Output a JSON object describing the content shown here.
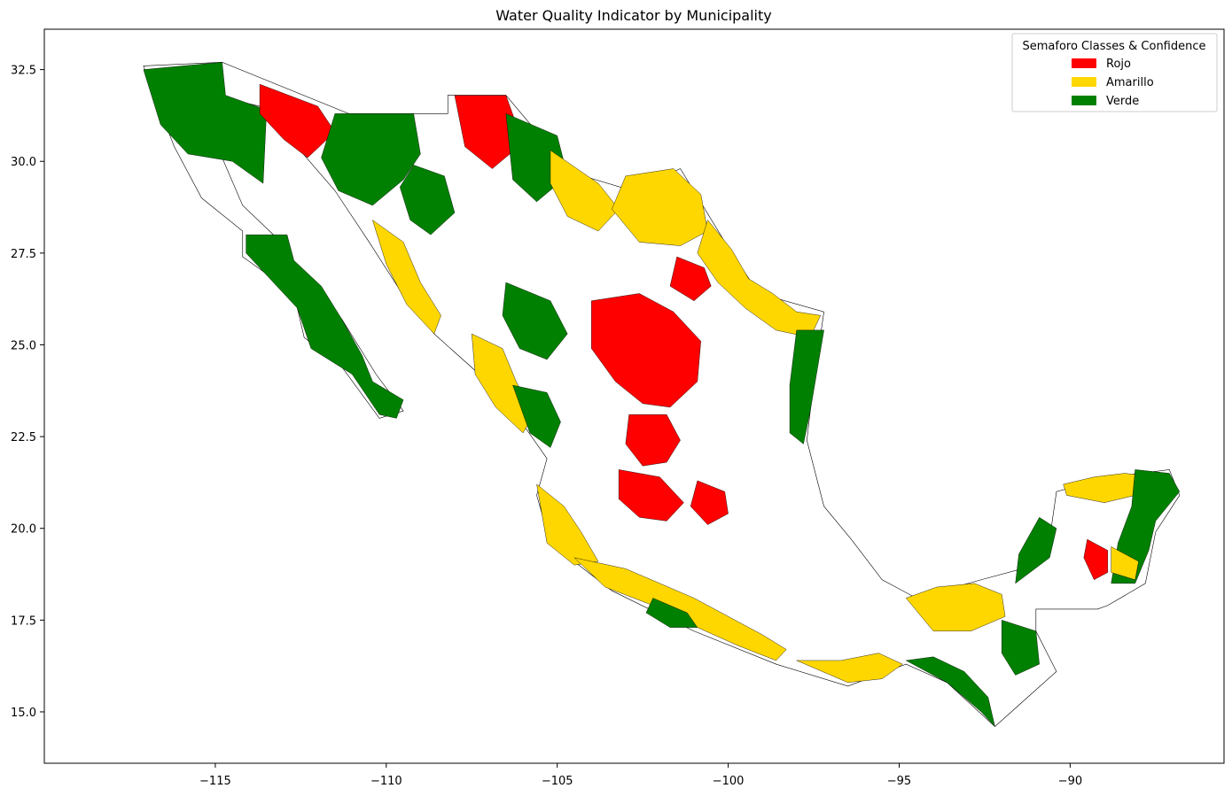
{
  "chart_data": {
    "type": "map",
    "title": "Water Quality Indicator by Municipality",
    "xlim": [
      -120,
      -85.5
    ],
    "ylim": [
      13.6,
      33.6
    ],
    "xticks": [
      -115,
      -110,
      -105,
      -100,
      -95,
      -90
    ],
    "yticks": [
      15.0,
      17.5,
      20.0,
      22.5,
      25.0,
      27.5,
      30.0,
      32.5
    ],
    "xtick_labels": [
      "−115",
      "−110",
      "−105",
      "−100",
      "−95",
      "−90"
    ],
    "ytick_labels": [
      "15.0",
      "17.5",
      "20.0",
      "22.5",
      "25.0",
      "27.5",
      "30.0",
      "32.5"
    ],
    "legend": {
      "title": "Semaforo Classes & Confidence",
      "placement": "top-right",
      "entries": [
        {
          "label": "Rojo",
          "color": "#ff0000"
        },
        {
          "label": "Amarillo",
          "color": "#ffd700"
        },
        {
          "label": "Verde",
          "color": "#008000"
        }
      ]
    },
    "no_data_color": "#ffffff",
    "border_color": "#000000",
    "regions": [
      {
        "class": "Verde",
        "poly": [
          [
            -117.1,
            32.5
          ],
          [
            -114.8,
            32.7
          ],
          [
            -114.7,
            31.8
          ],
          [
            -113.5,
            31.4
          ],
          [
            -113.6,
            29.4
          ],
          [
            -114.5,
            30.0
          ],
          [
            -115.8,
            30.2
          ],
          [
            -116.6,
            31.0
          ],
          [
            -117.1,
            32.5
          ]
        ]
      },
      {
        "class": "Verde",
        "poly": [
          [
            -114.1,
            28.0
          ],
          [
            -112.9,
            28.0
          ],
          [
            -112.7,
            27.3
          ],
          [
            -111.9,
            26.6
          ],
          [
            -111.3,
            25.7
          ],
          [
            -110.7,
            24.7
          ],
          [
            -110.4,
            24.0
          ],
          [
            -109.5,
            23.5
          ],
          [
            -109.7,
            23.0
          ],
          [
            -110.2,
            23.1
          ],
          [
            -111.0,
            24.2
          ],
          [
            -112.2,
            24.9
          ],
          [
            -112.6,
            26.0
          ],
          [
            -114.1,
            27.5
          ],
          [
            -114.1,
            28.0
          ]
        ]
      },
      {
        "class": "Rojo",
        "poly": [
          [
            -113.7,
            32.1
          ],
          [
            -112.0,
            31.5
          ],
          [
            -111.5,
            30.8
          ],
          [
            -112.3,
            30.1
          ],
          [
            -113.0,
            30.6
          ],
          [
            -113.7,
            31.3
          ],
          [
            -113.7,
            32.1
          ]
        ]
      },
      {
        "class": "Verde",
        "poly": [
          [
            -111.5,
            31.3
          ],
          [
            -109.2,
            31.3
          ],
          [
            -109.0,
            30.2
          ],
          [
            -109.5,
            29.5
          ],
          [
            -110.4,
            28.8
          ],
          [
            -111.4,
            29.2
          ],
          [
            -111.9,
            30.1
          ],
          [
            -111.5,
            31.3
          ]
        ]
      },
      {
        "class": "Verde",
        "poly": [
          [
            -109.2,
            29.9
          ],
          [
            -108.3,
            29.6
          ],
          [
            -108.0,
            28.6
          ],
          [
            -108.7,
            28.0
          ],
          [
            -109.3,
            28.4
          ],
          [
            -109.6,
            29.3
          ],
          [
            -109.2,
            29.9
          ]
        ]
      },
      {
        "class": "Amarillo",
        "poly": [
          [
            -110.4,
            28.4
          ],
          [
            -109.5,
            27.8
          ],
          [
            -109.0,
            26.7
          ],
          [
            -108.4,
            25.8
          ],
          [
            -108.6,
            25.3
          ],
          [
            -109.4,
            26.1
          ],
          [
            -110.0,
            27.2
          ],
          [
            -110.4,
            28.4
          ]
        ]
      },
      {
        "class": "Rojo",
        "poly": [
          [
            -108.0,
            31.8
          ],
          [
            -106.5,
            31.8
          ],
          [
            -106.0,
            30.5
          ],
          [
            -106.9,
            29.8
          ],
          [
            -107.7,
            30.4
          ],
          [
            -108.0,
            31.8
          ]
        ]
      },
      {
        "class": "Verde",
        "poly": [
          [
            -106.5,
            31.3
          ],
          [
            -105.0,
            30.7
          ],
          [
            -104.7,
            29.6
          ],
          [
            -105.6,
            28.9
          ],
          [
            -106.3,
            29.5
          ],
          [
            -106.5,
            31.3
          ]
        ]
      },
      {
        "class": "Amarillo",
        "poly": [
          [
            -105.2,
            30.3
          ],
          [
            -103.8,
            29.4
          ],
          [
            -103.2,
            28.7
          ],
          [
            -103.8,
            28.1
          ],
          [
            -104.7,
            28.5
          ],
          [
            -105.2,
            29.4
          ],
          [
            -105.2,
            30.3
          ]
        ]
      },
      {
        "class": "Amarillo",
        "poly": [
          [
            -103.0,
            29.6
          ],
          [
            -101.6,
            29.8
          ],
          [
            -100.8,
            29.1
          ],
          [
            -100.6,
            28.1
          ],
          [
            -101.4,
            27.7
          ],
          [
            -102.6,
            27.8
          ],
          [
            -103.4,
            28.7
          ],
          [
            -103.0,
            29.6
          ]
        ]
      },
      {
        "class": "Amarillo",
        "poly": [
          [
            -100.6,
            28.4
          ],
          [
            -99.9,
            27.6
          ],
          [
            -99.4,
            26.8
          ],
          [
            -98.7,
            26.4
          ],
          [
            -98.0,
            25.9
          ],
          [
            -97.3,
            25.8
          ],
          [
            -97.6,
            25.2
          ],
          [
            -98.6,
            25.4
          ],
          [
            -99.5,
            26.0
          ],
          [
            -100.3,
            26.7
          ],
          [
            -100.9,
            27.5
          ],
          [
            -100.6,
            28.4
          ]
        ]
      },
      {
        "class": "Rojo",
        "poly": [
          [
            -101.5,
            27.4
          ],
          [
            -100.7,
            27.1
          ],
          [
            -100.5,
            26.6
          ],
          [
            -101.0,
            26.2
          ],
          [
            -101.7,
            26.6
          ],
          [
            -101.5,
            27.4
          ]
        ]
      },
      {
        "class": "Verde",
        "poly": [
          [
            -98.0,
            25.4
          ],
          [
            -97.2,
            25.4
          ],
          [
            -97.4,
            24.3
          ],
          [
            -97.6,
            23.2
          ],
          [
            -97.8,
            22.3
          ],
          [
            -98.2,
            22.6
          ],
          [
            -98.2,
            23.9
          ],
          [
            -98.0,
            25.4
          ]
        ]
      },
      {
        "class": "Rojo",
        "poly": [
          [
            -104.0,
            26.2
          ],
          [
            -102.6,
            26.4
          ],
          [
            -101.6,
            25.9
          ],
          [
            -100.8,
            25.1
          ],
          [
            -100.9,
            24.0
          ],
          [
            -101.7,
            23.3
          ],
          [
            -102.5,
            23.4
          ],
          [
            -103.3,
            24.0
          ],
          [
            -104.0,
            24.9
          ],
          [
            -104.0,
            26.2
          ]
        ]
      },
      {
        "class": "Rojo",
        "poly": [
          [
            -102.9,
            23.1
          ],
          [
            -101.8,
            23.1
          ],
          [
            -101.4,
            22.4
          ],
          [
            -101.8,
            21.8
          ],
          [
            -102.5,
            21.7
          ],
          [
            -103.0,
            22.3
          ],
          [
            -102.9,
            23.1
          ]
        ]
      },
      {
        "class": "Verde",
        "poly": [
          [
            -106.5,
            26.7
          ],
          [
            -105.2,
            26.2
          ],
          [
            -104.7,
            25.3
          ],
          [
            -105.3,
            24.6
          ],
          [
            -106.1,
            24.9
          ],
          [
            -106.6,
            25.8
          ],
          [
            -106.5,
            26.7
          ]
        ]
      },
      {
        "class": "Amarillo",
        "poly": [
          [
            -107.5,
            25.3
          ],
          [
            -106.6,
            24.9
          ],
          [
            -106.2,
            24.0
          ],
          [
            -105.7,
            23.1
          ],
          [
            -106.0,
            22.6
          ],
          [
            -106.8,
            23.3
          ],
          [
            -107.4,
            24.2
          ],
          [
            -107.5,
            25.3
          ]
        ]
      },
      {
        "class": "Verde",
        "poly": [
          [
            -106.3,
            23.9
          ],
          [
            -105.3,
            23.7
          ],
          [
            -104.9,
            22.9
          ],
          [
            -105.2,
            22.2
          ],
          [
            -105.8,
            22.6
          ],
          [
            -106.3,
            23.9
          ]
        ]
      },
      {
        "class": "Amarillo",
        "poly": [
          [
            -105.6,
            21.2
          ],
          [
            -104.8,
            20.6
          ],
          [
            -104.3,
            19.9
          ],
          [
            -103.8,
            19.1
          ],
          [
            -104.5,
            19.0
          ],
          [
            -105.3,
            19.6
          ],
          [
            -105.6,
            21.2
          ]
        ]
      },
      {
        "class": "Rojo",
        "poly": [
          [
            -103.2,
            21.6
          ],
          [
            -102.0,
            21.4
          ],
          [
            -101.3,
            20.7
          ],
          [
            -101.8,
            20.2
          ],
          [
            -102.6,
            20.3
          ],
          [
            -103.2,
            20.8
          ],
          [
            -103.2,
            21.6
          ]
        ]
      },
      {
        "class": "Rojo",
        "poly": [
          [
            -100.9,
            21.3
          ],
          [
            -100.1,
            21.0
          ],
          [
            -100.0,
            20.4
          ],
          [
            -100.6,
            20.1
          ],
          [
            -101.1,
            20.6
          ],
          [
            -100.9,
            21.3
          ]
        ]
      },
      {
        "class": "Amarillo",
        "poly": [
          [
            -104.5,
            19.2
          ],
          [
            -103.0,
            18.9
          ],
          [
            -102.0,
            18.5
          ],
          [
            -101.0,
            18.1
          ],
          [
            -100.0,
            17.6
          ],
          [
            -99.0,
            17.1
          ],
          [
            -98.3,
            16.7
          ],
          [
            -98.6,
            16.4
          ],
          [
            -99.7,
            16.8
          ],
          [
            -100.9,
            17.3
          ],
          [
            -102.2,
            17.9
          ],
          [
            -103.6,
            18.4
          ],
          [
            -104.5,
            19.2
          ]
        ]
      },
      {
        "class": "Verde",
        "poly": [
          [
            -102.2,
            18.1
          ],
          [
            -101.2,
            17.7
          ],
          [
            -100.9,
            17.3
          ],
          [
            -101.7,
            17.3
          ],
          [
            -102.4,
            17.7
          ],
          [
            -102.2,
            18.1
          ]
        ]
      },
      {
        "class": "Amarillo",
        "poly": [
          [
            -98.0,
            16.4
          ],
          [
            -96.5,
            15.8
          ],
          [
            -95.5,
            15.9
          ],
          [
            -94.9,
            16.3
          ],
          [
            -95.6,
            16.6
          ],
          [
            -96.7,
            16.4
          ],
          [
            -98.0,
            16.4
          ]
        ]
      },
      {
        "class": "Verde",
        "poly": [
          [
            -94.8,
            16.4
          ],
          [
            -93.6,
            15.8
          ],
          [
            -92.6,
            15.0
          ],
          [
            -92.2,
            14.6
          ],
          [
            -92.4,
            15.4
          ],
          [
            -93.1,
            16.1
          ],
          [
            -94.0,
            16.5
          ],
          [
            -94.8,
            16.4
          ]
        ]
      },
      {
        "class": "Amarillo",
        "poly": [
          [
            -94.8,
            18.1
          ],
          [
            -93.9,
            18.4
          ],
          [
            -92.8,
            18.5
          ],
          [
            -92.0,
            18.2
          ],
          [
            -91.9,
            17.6
          ],
          [
            -92.9,
            17.2
          ],
          [
            -94.0,
            17.2
          ],
          [
            -94.8,
            18.1
          ]
        ]
      },
      {
        "class": "Verde",
        "poly": [
          [
            -91.6,
            18.5
          ],
          [
            -90.6,
            19.2
          ],
          [
            -90.4,
            20.0
          ],
          [
            -90.9,
            20.3
          ],
          [
            -91.5,
            19.3
          ],
          [
            -91.6,
            18.5
          ]
        ]
      },
      {
        "class": "Verde",
        "poly": [
          [
            -92.0,
            17.5
          ],
          [
            -91.0,
            17.2
          ],
          [
            -90.9,
            16.3
          ],
          [
            -91.6,
            16.0
          ],
          [
            -92.0,
            16.6
          ],
          [
            -92.0,
            17.5
          ]
        ]
      },
      {
        "class": "Amarillo",
        "poly": [
          [
            -90.2,
            21.2
          ],
          [
            -89.3,
            21.4
          ],
          [
            -88.4,
            21.5
          ],
          [
            -87.5,
            21.4
          ],
          [
            -88.1,
            20.9
          ],
          [
            -89.0,
            20.7
          ],
          [
            -90.1,
            20.9
          ],
          [
            -90.2,
            21.2
          ]
        ]
      },
      {
        "class": "Verde",
        "poly": [
          [
            -88.1,
            21.6
          ],
          [
            -87.1,
            21.5
          ],
          [
            -86.8,
            21.0
          ],
          [
            -87.5,
            20.2
          ],
          [
            -87.7,
            19.4
          ],
          [
            -88.1,
            18.5
          ],
          [
            -88.8,
            18.5
          ],
          [
            -88.6,
            19.6
          ],
          [
            -88.2,
            20.6
          ],
          [
            -88.1,
            21.6
          ]
        ]
      },
      {
        "class": "Rojo",
        "poly": [
          [
            -89.5,
            19.7
          ],
          [
            -88.9,
            19.4
          ],
          [
            -88.9,
            18.8
          ],
          [
            -89.3,
            18.6
          ],
          [
            -89.6,
            19.2
          ],
          [
            -89.5,
            19.7
          ]
        ]
      },
      {
        "class": "Amarillo",
        "poly": [
          [
            -88.8,
            19.5
          ],
          [
            -88.0,
            19.1
          ],
          [
            -88.1,
            18.6
          ],
          [
            -88.8,
            18.8
          ],
          [
            -88.8,
            19.5
          ]
        ]
      }
    ]
  }
}
